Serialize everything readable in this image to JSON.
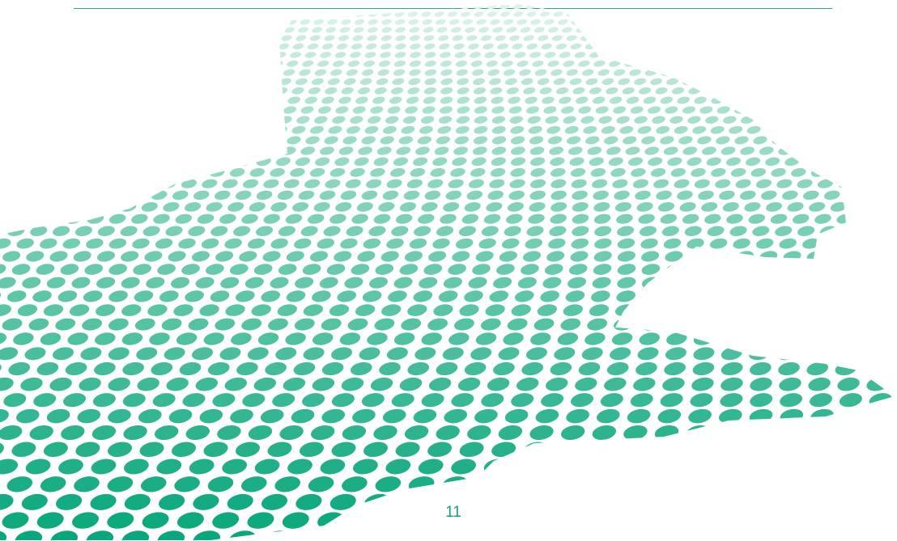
{
  "page": {
    "page_number": "11"
  },
  "colors": {
    "rule": "#2aa883",
    "dot_near": "#0aa77c",
    "dot_far": "#dff3ec",
    "page_number": "#12a37c"
  }
}
